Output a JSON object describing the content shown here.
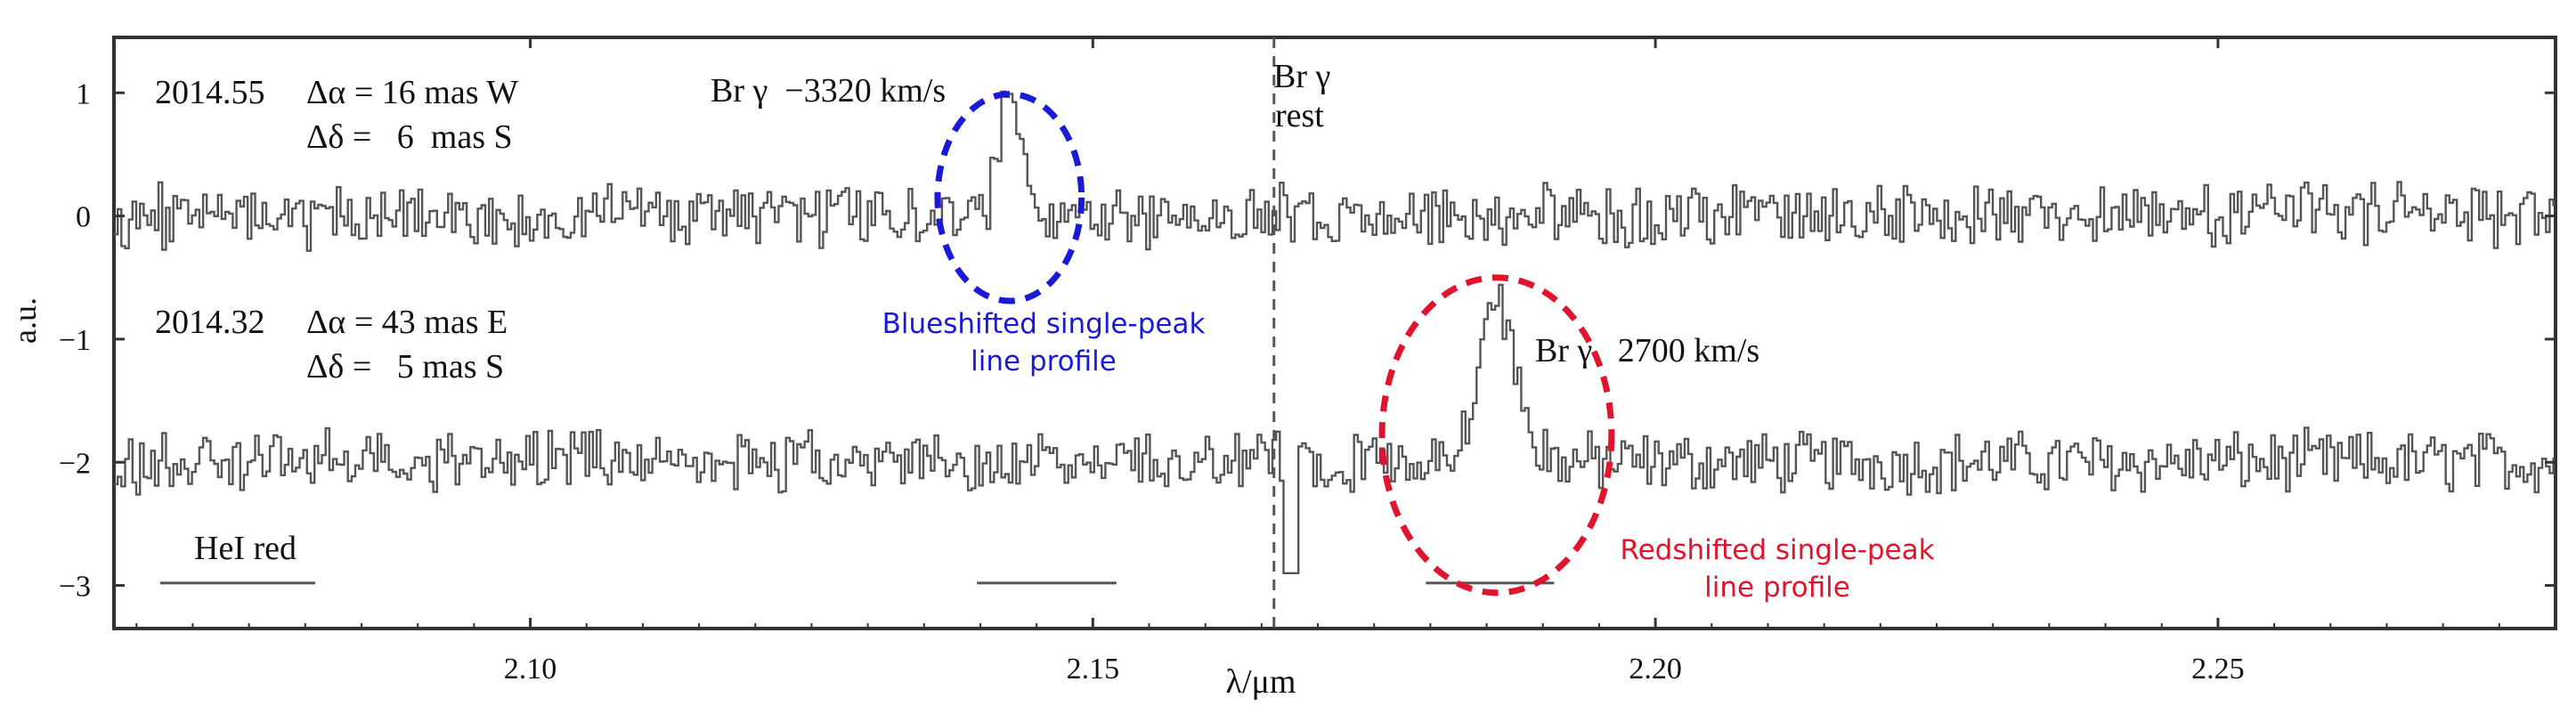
{
  "chart_data": {
    "type": "line",
    "title": "",
    "xlabel": "λ/μm",
    "ylabel": "a.u.",
    "xlim": [
      2.063,
      2.28
    ],
    "ylim": [
      -3.35,
      1.45
    ],
    "x_ticks": [
      2.1,
      2.15,
      2.2,
      2.25
    ],
    "x_tick_labels": [
      "2.10",
      "2.15",
      "2.20",
      "2.25"
    ],
    "y_ticks": [
      1,
      0,
      -1,
      -2,
      -3
    ],
    "y_tick_labels": [
      "1",
      "0",
      "−1",
      "−2",
      "−3"
    ],
    "grid": false,
    "rest_line": {
      "x": 2.1661,
      "label_line1": "Br γ",
      "label_line2": "rest",
      "color": "#555555"
    },
    "series": [
      {
        "name": "2014.55",
        "epoch": "2014.55",
        "offset_ra": "Δα = 16 mas W",
        "offset_dec": "Δδ =   6  mas S",
        "baseline": 0,
        "color": "#555555",
        "peak": {
          "x": 2.1426,
          "value": 0.92,
          "width": 0.0011,
          "label": "Br γ  −3320 km/s"
        }
      },
      {
        "name": "2014.32",
        "epoch": "2014.32",
        "offset_ra": "Δα = 43 mas E",
        "offset_dec": "Δδ =   5 mas S",
        "baseline": -2,
        "color": "#555555",
        "peak": {
          "x": 2.1857,
          "value": -0.62,
          "width": 0.0016,
          "label": "Br γ   2700 km/s"
        }
      }
    ],
    "bars": [
      {
        "x_start": 2.0671,
        "x_end": 2.0809,
        "y": -2.98,
        "label": "HeI red"
      },
      {
        "x_start": 2.1397,
        "x_end": 2.1521,
        "y": -2.98,
        "label": ""
      },
      {
        "x_start": 2.1796,
        "x_end": 2.191,
        "y": -2.98,
        "label": ""
      }
    ],
    "annotations": [
      {
        "text_line1": "Blueshifted single-peak",
        "text_line2": "line profile",
        "color": "#1a1ad6",
        "ellipse_center": [
          2.1426,
          0.15
        ],
        "ellipse_radius": [
          0.0064,
          0.84
        ]
      },
      {
        "text_line1": "Redshifted single-peak",
        "text_line2": "line profile",
        "color": "#e0142c",
        "ellipse_center": [
          2.1859,
          -1.78
        ],
        "ellipse_radius": [
          0.0102,
          1.28
        ]
      }
    ]
  }
}
